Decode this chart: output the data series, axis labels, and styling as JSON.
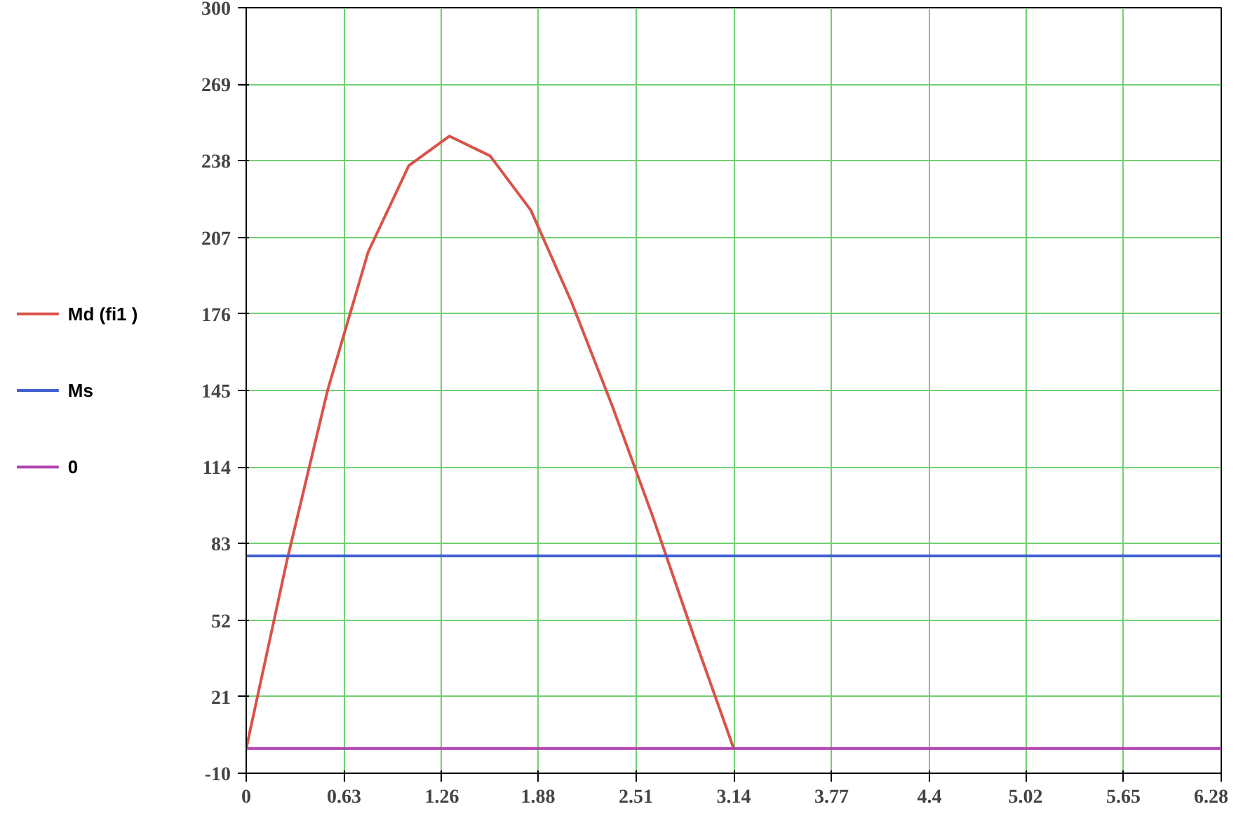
{
  "chart_data": {
    "type": "line",
    "xlim": [
      0,
      6.28
    ],
    "ylim": [
      -10,
      300
    ],
    "xticks": [
      0,
      0.63,
      1.26,
      1.88,
      2.51,
      3.14,
      3.77,
      4.4,
      5.02,
      5.65,
      6.28
    ],
    "yticks": [
      -10,
      21,
      52,
      83,
      114,
      145,
      176,
      207,
      238,
      269,
      300
    ],
    "grid": true,
    "legend": "left",
    "marker": "none",
    "line_style": "solid",
    "series": [
      {
        "name": "Md (fi1 )",
        "color": "#d9534a",
        "x": [
          0,
          0.262,
          0.524,
          0.785,
          1.047,
          1.309,
          1.571,
          1.833,
          2.094,
          2.356,
          2.618,
          2.88,
          3.14
        ],
        "values": [
          0,
          76,
          145,
          201,
          236,
          248,
          240,
          218,
          181,
          139,
          94,
          46,
          0
        ]
      },
      {
        "name": "Ms",
        "color": "#4060d0",
        "x": [
          0,
          6.28
        ],
        "values": [
          78,
          78
        ]
      },
      {
        "name": "0",
        "color": "#b040b0",
        "x": [
          0,
          6.28
        ],
        "values": [
          0,
          0
        ]
      }
    ]
  }
}
